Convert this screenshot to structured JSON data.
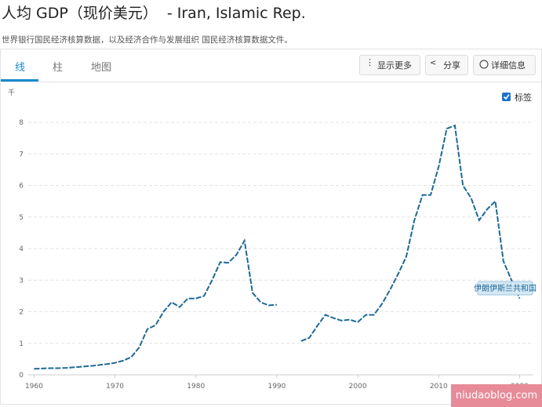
{
  "header": {
    "title": "人均 GDP（现价美元）",
    "country": "- Iran, Islamic Rep.",
    "subtitle": "世界银行国民经济核算数据，以及经济合作与发展组织 国民经济核算数据文件。"
  },
  "tabs": [
    "线",
    "柱",
    "地图"
  ],
  "buttons": [
    "显示更多",
    "分享",
    "详细信息"
  ],
  "label_toggle": "标签",
  "watermark": "niudaoblog.com",
  "chart_data": {
    "type": "line",
    "y_unit": "千",
    "x": [
      1960,
      1961,
      1962,
      1963,
      1964,
      1965,
      1966,
      1967,
      1968,
      1969,
      1970,
      1971,
      1972,
      1973,
      1974,
      1975,
      1976,
      1977,
      1978,
      1979,
      1980,
      1981,
      1982,
      1983,
      1984,
      1985,
      1986,
      1987,
      1988,
      1989,
      1990,
      1991,
      1992,
      1993,
      1994,
      1995,
      1996,
      1997,
      1998,
      1999,
      2000,
      2001,
      2002,
      2003,
      2004,
      2005,
      2006,
      2007,
      2008,
      2009,
      2010,
      2011,
      2012,
      2013,
      2014,
      2015,
      2016,
      2017,
      2018,
      2019,
      2020
    ],
    "series": [
      {
        "name": "伊朗伊斯兰共和国",
        "color": "#1d6a96",
        "values": [
          0.19,
          0.2,
          0.21,
          0.21,
          0.22,
          0.24,
          0.26,
          0.28,
          0.31,
          0.34,
          0.38,
          0.45,
          0.56,
          0.87,
          1.45,
          1.57,
          2.0,
          2.3,
          2.15,
          2.42,
          2.42,
          2.5,
          3.0,
          3.57,
          3.55,
          3.8,
          4.25,
          2.6,
          2.3,
          2.2,
          2.22,
          null,
          null,
          1.07,
          1.17,
          1.55,
          1.9,
          1.8,
          1.72,
          1.75,
          1.67,
          1.9,
          1.9,
          2.25,
          2.7,
          3.2,
          3.75,
          4.9,
          5.7,
          5.7,
          6.6,
          7.8,
          7.9,
          6.0,
          5.6,
          4.9,
          5.25,
          5.5,
          3.6,
          3.0,
          2.42
        ]
      }
    ],
    "xlim": [
      1958.7,
      2021.7
    ],
    "xticks": [
      1960,
      1970,
      1980,
      1990,
      2000,
      2010,
      2020
    ],
    "ylim": [
      0,
      8
    ],
    "yticks": [
      0,
      1,
      2,
      3,
      4,
      5,
      6,
      7,
      8
    ],
    "grid": true
  }
}
